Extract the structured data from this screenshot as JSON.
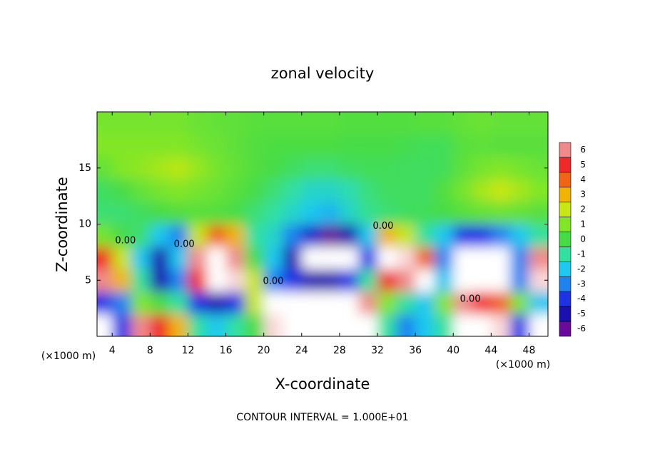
{
  "chart_data": {
    "type": "heatmap",
    "title": "zonal velocity",
    "x_label": "X-coordinate",
    "y_label": "Z-coordinate",
    "x_unit_left": "(×1000 m)",
    "x_unit_right": "(×1000 m)",
    "footer": "CONTOUR INTERVAL = 1.000E+01",
    "xlim": [
      2.4,
      50
    ],
    "ylim": [
      0,
      20
    ],
    "xticks": [
      4,
      8,
      12,
      16,
      20,
      24,
      28,
      32,
      36,
      40,
      44,
      48
    ],
    "yticks": [
      5,
      10,
      15
    ],
    "x": [
      3,
      5,
      7,
      9,
      11,
      13,
      15,
      17,
      19,
      21,
      23,
      25,
      27,
      29,
      31,
      33,
      35,
      37,
      39,
      41,
      43,
      45,
      47,
      49
    ],
    "y": [
      1,
      3,
      5,
      7,
      9,
      11,
      13,
      15,
      17,
      19
    ],
    "z": [
      [
        -8,
        -4,
        6,
        5,
        3,
        -1,
        -2,
        -1,
        0,
        7,
        9,
        9,
        9,
        9,
        8,
        -1,
        -3,
        -2,
        -1,
        8,
        9,
        7,
        -4,
        -8
      ],
      [
        -4,
        -3,
        1,
        0,
        -1,
        -4,
        -5,
        -4,
        2,
        8,
        9,
        9,
        9,
        9,
        6,
        1,
        -1,
        -2,
        1,
        6,
        5,
        4,
        1,
        -2
      ],
      [
        6,
        3,
        -1,
        -5,
        -3,
        5,
        8,
        7,
        2,
        -3,
        -4,
        -5,
        -5,
        -4,
        -1,
        5,
        6,
        8,
        -2,
        -9,
        -9,
        -9,
        -3,
        7
      ],
      [
        5,
        2,
        -2,
        -5,
        -2,
        6,
        8,
        6,
        0,
        -2,
        -5,
        -9,
        -9,
        -9,
        -4,
        8,
        7,
        4,
        -3,
        -8,
        -9,
        -8,
        -3,
        6
      ],
      [
        0.8,
        0,
        -0.5,
        -2,
        -3,
        2,
        4,
        3,
        -1,
        -1.5,
        -3,
        -4.5,
        -6,
        -5,
        -2,
        3,
        2,
        -1,
        -2,
        -4,
        -4,
        -3,
        -2,
        -1
      ],
      [
        -0.5,
        -0.5,
        -0.3,
        0,
        0.2,
        0.3,
        0.2,
        0,
        -0.5,
        -1,
        -1.5,
        -2,
        -2.3,
        -1.5,
        -0.8,
        -0.5,
        -0.3,
        -0.2,
        0,
        0.3,
        0.5,
        0.6,
        0.5,
        0.3
      ],
      [
        -0.3,
        0,
        0.5,
        0.8,
        1,
        0.8,
        0.6,
        0.3,
        0,
        -0.5,
        -1,
        -1.5,
        -1.5,
        -1.2,
        -0.6,
        -0.3,
        -0.3,
        -0.3,
        0.2,
        0.8,
        1.5,
        2,
        1.5,
        1
      ],
      [
        0.5,
        1,
        1.2,
        1.5,
        1.8,
        1.3,
        0.8,
        0.5,
        0.2,
        0,
        -0.3,
        -0.5,
        -0.5,
        -0.3,
        -0.2,
        -0.2,
        -0.3,
        -0.3,
        -0.2,
        0.4,
        0.8,
        1,
        0.8,
        0.6
      ],
      [
        1,
        1,
        1,
        1,
        1,
        0.8,
        0.6,
        0.4,
        0.2,
        0.1,
        0.1,
        0.1,
        0.1,
        0,
        0,
        0,
        -0.1,
        -0.2,
        -0.2,
        0.3,
        0.4,
        0.3,
        0.3,
        0.3
      ],
      [
        0.8,
        0.8,
        0.8,
        0.8,
        0.8,
        0.6,
        0.5,
        0.4,
        0.3,
        0.3,
        0.3,
        0.3,
        0.3,
        0.2,
        0.2,
        0.2,
        0.2,
        0.3,
        0.3,
        0.5,
        0.6,
        0.5,
        0.5,
        0.5
      ]
    ],
    "colorbar": {
      "ticks": [
        6,
        5,
        4,
        3,
        2,
        1,
        0,
        -1,
        -2,
        -3,
        -4,
        -5,
        -6
      ],
      "colors": [
        "#f08a8a",
        "#f02828",
        "#f06414",
        "#f0b400",
        "#c8e614",
        "#82e628",
        "#46dc46",
        "#32e0a0",
        "#1ec8f0",
        "#1e82f0",
        "#1e32e6",
        "#1a10b0",
        "#6a0a9a"
      ]
    },
    "annotations": [
      {
        "text": "0.00",
        "x": 5.4,
        "z": 8.5
      },
      {
        "text": "0.00",
        "x": 11.6,
        "z": 8.2
      },
      {
        "text": "0.00",
        "x": 21,
        "z": 4.9
      },
      {
        "text": "0.00",
        "x": 32.6,
        "z": 9.8
      },
      {
        "text": "0.00",
        "x": 41.8,
        "z": 3.3
      }
    ]
  }
}
